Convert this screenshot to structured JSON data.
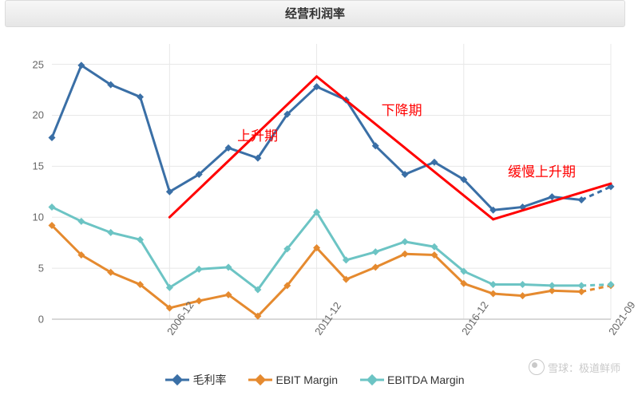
{
  "title": "经营利润率",
  "chart": {
    "type": "line",
    "background_color": "#ffffff",
    "grid_color": "#e8e8e8",
    "axis_color": "#cccccc",
    "label_color": "#666666",
    "label_fontsize": 13,
    "annotation_color": "#ff0000",
    "annotation_fontsize": 17,
    "ylim": [
      0,
      27
    ],
    "yticks": [
      0,
      5,
      10,
      15,
      20,
      25
    ],
    "xlabels_shown": [
      "2006-12",
      "2011-12",
      "2016-12",
      "2021-09"
    ],
    "xlabels_positions": [
      4,
      9,
      14,
      19
    ],
    "n_points": 20,
    "series": [
      {
        "name": "毛利率",
        "color": "#3a6fa6",
        "line_width": 3,
        "marker": "diamond",
        "marker_size": 9,
        "values": [
          17.8,
          24.9,
          23.0,
          21.8,
          12.5,
          14.2,
          16.8,
          15.8,
          20.1,
          22.8,
          21.5,
          17.0,
          14.2,
          15.4,
          13.7,
          10.7,
          11.0,
          12.0,
          11.7,
          13.0
        ],
        "dashed_tail_start": 18
      },
      {
        "name": "EBIT Margin",
        "color": "#e58a2f",
        "line_width": 3,
        "marker": "diamond",
        "marker_size": 9,
        "values": [
          9.2,
          6.3,
          4.6,
          3.4,
          1.1,
          1.8,
          2.4,
          0.3,
          3.3,
          7.0,
          3.9,
          5.1,
          6.4,
          6.3,
          3.5,
          2.5,
          2.3,
          2.8,
          2.7,
          3.3
        ],
        "dashed_tail_start": 18
      },
      {
        "name": "EBITDA Margin",
        "color": "#6cc4c4",
        "line_width": 3,
        "marker": "diamond",
        "marker_size": 9,
        "values": [
          11.0,
          9.6,
          8.5,
          7.8,
          3.1,
          4.9,
          5.1,
          2.9,
          6.9,
          10.5,
          5.8,
          6.6,
          7.6,
          7.1,
          4.7,
          3.4,
          3.4,
          3.3,
          3.3,
          3.4
        ],
        "dashed_tail_start": 18
      }
    ],
    "overlay_lines": [
      {
        "x1_idx": 4,
        "y1": 10.0,
        "x2_idx": 9,
        "y2": 23.8,
        "color": "#ff0000",
        "width": 3
      },
      {
        "x1_idx": 9,
        "y1": 23.8,
        "x2_idx": 15,
        "y2": 9.8,
        "color": "#ff0000",
        "width": 3
      },
      {
        "x1_idx": 15,
        "y1": 9.8,
        "x2_idx": 19,
        "y2": 13.3,
        "color": "#ff0000",
        "width": 3
      }
    ],
    "annotations": [
      {
        "text": "上升期",
        "x_idx": 6.3,
        "y": 18.3
      },
      {
        "text": "下降期",
        "x_idx": 11.2,
        "y": 20.8
      },
      {
        "text": "缓慢上升期",
        "x_idx": 15.5,
        "y": 14.8
      }
    ]
  },
  "legend": {
    "items": [
      {
        "label": "毛利率",
        "color": "#3a6fa6"
      },
      {
        "label": "EBIT Margin",
        "color": "#e58a2f"
      },
      {
        "label": "EBITDA Margin",
        "color": "#6cc4c4"
      }
    ]
  },
  "watermark": "雪球：极道鲜师"
}
